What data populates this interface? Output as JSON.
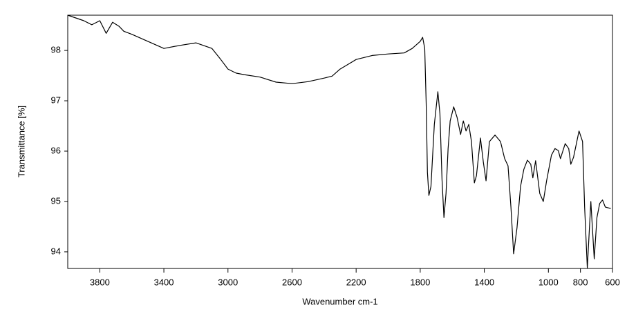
{
  "chart_data": {
    "type": "line",
    "xlabel": "Wavenumber cm-1",
    "ylabel": "Transmittance [%]",
    "xlim": [
      4000,
      600
    ],
    "ylim": [
      93.67,
      98.7
    ],
    "xticks": [
      3800,
      3400,
      3000,
      2600,
      2200,
      1800,
      1400,
      1000,
      800,
      600
    ],
    "yticks": [
      94,
      95,
      96,
      97,
      98
    ],
    "series": [
      {
        "color": "#000000",
        "x": [
          4000,
          3900,
          3850,
          3800,
          3760,
          3720,
          3680,
          3650,
          3600,
          3500,
          3400,
          3300,
          3200,
          3100,
          3050,
          3000,
          2950,
          2900,
          2800,
          2700,
          2600,
          2500,
          2400,
          2350,
          2300,
          2200,
          2100,
          2000,
          1900,
          1850,
          1800,
          1785,
          1772,
          1763,
          1755,
          1746,
          1733,
          1712,
          1690,
          1677,
          1664,
          1652,
          1639,
          1626,
          1613,
          1591,
          1570,
          1548,
          1531,
          1514,
          1497,
          1480,
          1462,
          1449,
          1424,
          1406,
          1389,
          1368,
          1333,
          1299,
          1273,
          1252,
          1234,
          1217,
          1196,
          1174,
          1153,
          1131,
          1110,
          1097,
          1080,
          1054,
          1032,
          1011,
          981,
          959,
          938,
          925,
          895,
          873,
          860,
          843,
          809,
          787,
          774,
          757,
          735,
          714,
          697,
          680,
          662,
          645,
          611
        ],
        "values": [
          98.7,
          98.59,
          98.51,
          98.59,
          98.34,
          98.56,
          98.48,
          98.38,
          98.32,
          98.18,
          98.04,
          98.1,
          98.15,
          98.04,
          97.84,
          97.63,
          97.55,
          97.52,
          97.47,
          97.37,
          97.34,
          97.38,
          97.45,
          97.49,
          97.63,
          97.82,
          97.9,
          97.93,
          97.95,
          98.04,
          98.18,
          98.26,
          98.04,
          96.95,
          95.58,
          95.12,
          95.3,
          96.53,
          97.18,
          96.74,
          95.44,
          94.68,
          95.16,
          96.05,
          96.6,
          96.88,
          96.67,
          96.33,
          96.6,
          96.4,
          96.53,
          96.19,
          95.37,
          95.51,
          96.26,
          95.78,
          95.41,
          96.19,
          96.32,
          96.19,
          95.85,
          95.71,
          94.89,
          93.96,
          94.48,
          95.3,
          95.64,
          95.82,
          95.74,
          95.47,
          95.81,
          95.16,
          95.0,
          95.41,
          95.92,
          96.05,
          96.01,
          95.85,
          96.15,
          96.05,
          95.74,
          95.88,
          96.4,
          96.19,
          94.89,
          93.68,
          95.0,
          93.86,
          94.68,
          94.96,
          95.03,
          94.89,
          94.86
        ]
      }
    ]
  }
}
